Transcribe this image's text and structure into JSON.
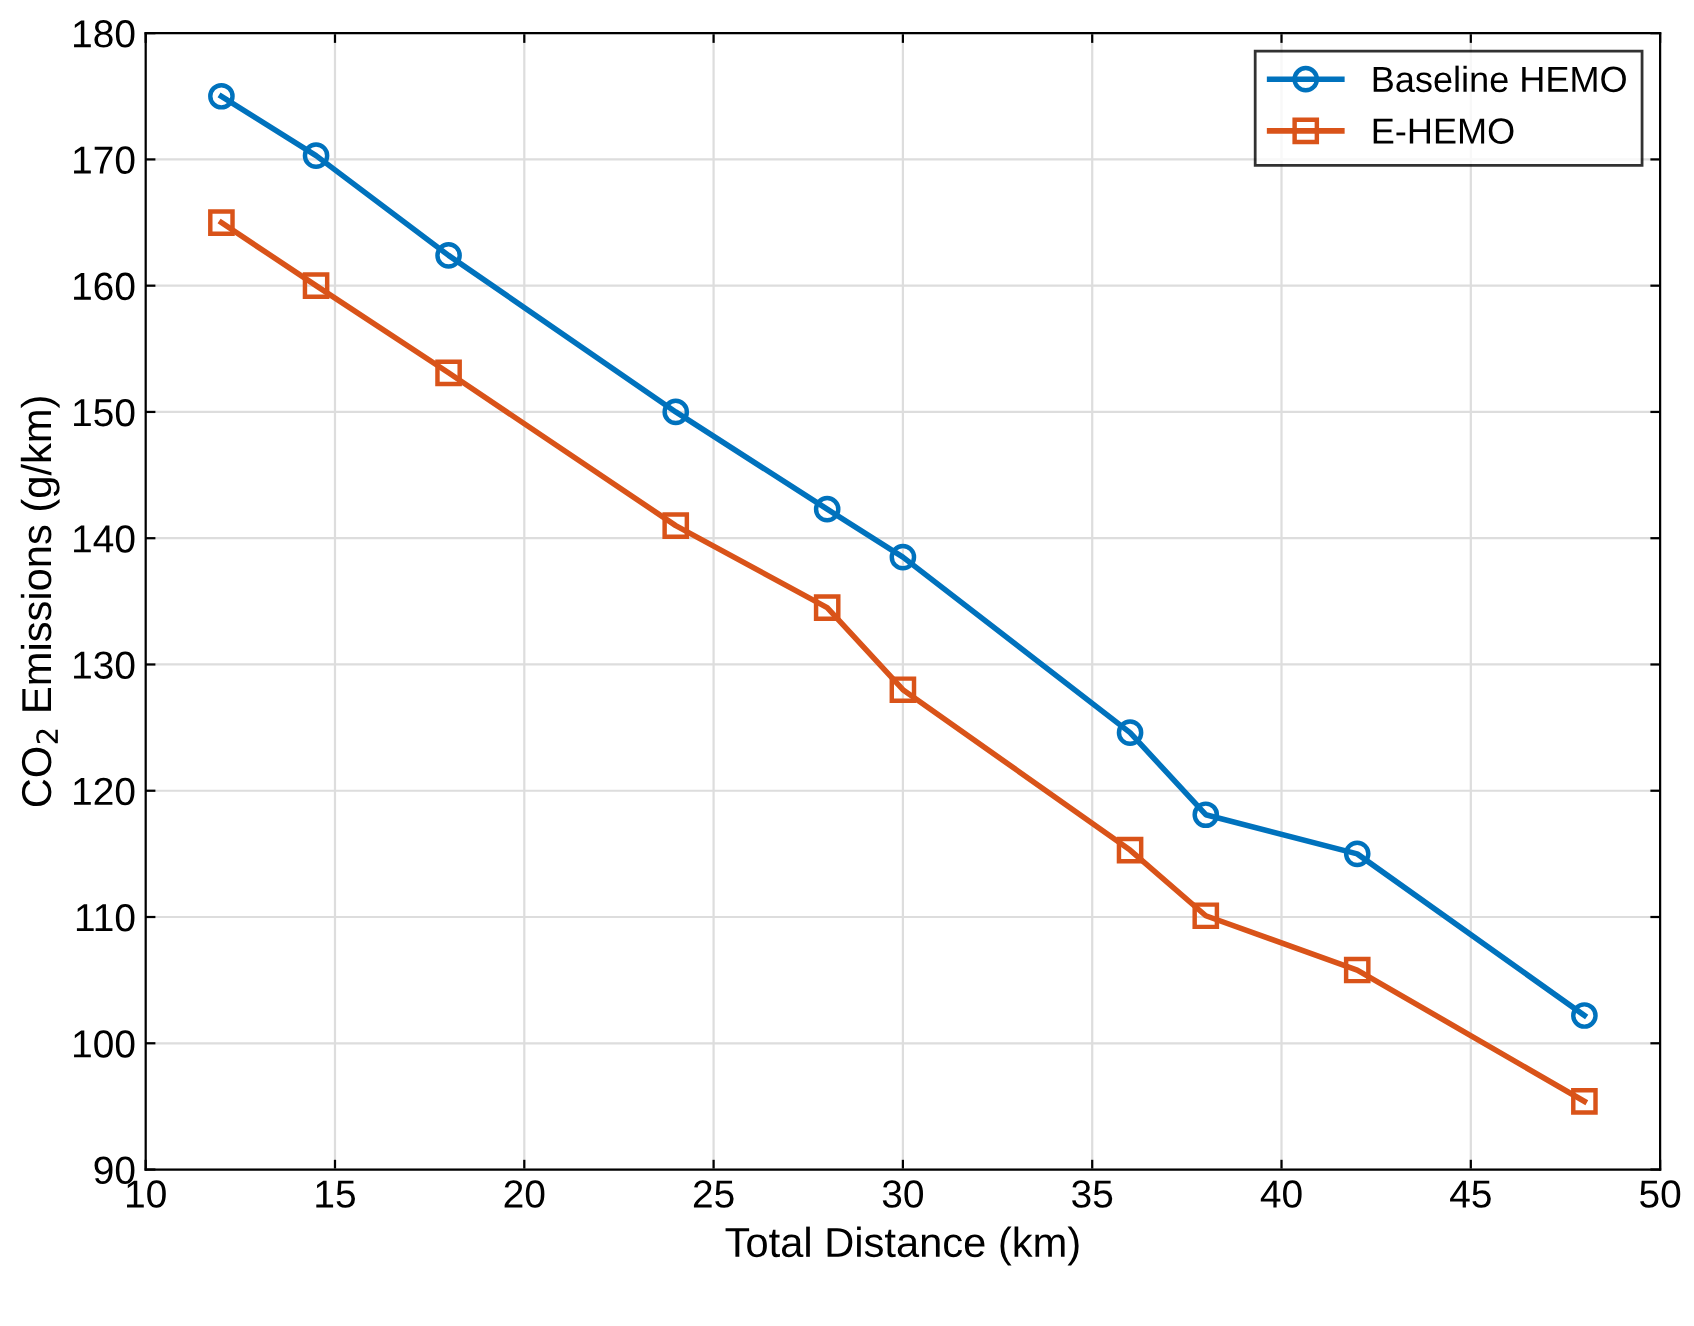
{
  "chart_data": {
    "type": "line",
    "xlabel": "Total Distance (km)",
    "ylabel": "CO$_{2}$ Emissions (g/km)",
    "x": [
      12,
      14.5,
      18,
      24,
      28,
      30,
      36,
      38,
      42,
      48
    ],
    "series": [
      {
        "name": "Baseline HEMO",
        "color": "#0072bd",
        "marker": "circle",
        "values": [
          175,
          170.3,
          162.4,
          150,
          142.3,
          138.5,
          124.6,
          118.1,
          115,
          102.2
        ]
      },
      {
        "name": "E-HEMO",
        "color": "#d95319",
        "marker": "square",
        "values": [
          165,
          160,
          153.1,
          141,
          134.5,
          128,
          115.3,
          110.1,
          105.8,
          95.4
        ]
      }
    ],
    "xlim": [
      10,
      50
    ],
    "xticks": [
      10,
      15,
      20,
      25,
      30,
      35,
      40,
      45,
      50
    ],
    "ylim": [
      90,
      180
    ],
    "yticks": [
      90,
      100,
      110,
      120,
      130,
      140,
      150,
      160,
      170,
      180
    ],
    "grid": true,
    "legend": "top right",
    "line_style": "solid"
  }
}
